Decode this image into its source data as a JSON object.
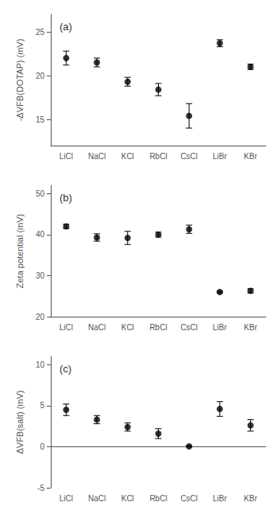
{
  "chart_data": [
    {
      "type": "scatter",
      "categories": [
        "LiCl",
        "NaCl",
        "KCl",
        "RbCl",
        "CsCl",
        "LiBr",
        "KBr"
      ],
      "values": [
        22.0,
        21.5,
        19.3,
        18.4,
        15.4,
        23.7,
        21.0
      ],
      "errors": [
        0.8,
        0.5,
        0.5,
        0.7,
        1.4,
        0.4,
        0.3
      ],
      "ylabel": "-ΔVFB(DOTAP) (mV)",
      "ylim": [
        12,
        27
      ],
      "yticks": [
        15,
        20,
        25
      ],
      "annotations": [
        "(a)"
      ],
      "color": "black",
      "marker": "circle",
      "grid": false
    },
    {
      "type": "scatter",
      "categories": [
        "LiCl",
        "NaCl",
        "KCl",
        "RbCl",
        "CsCl",
        "LiBr",
        "KBr"
      ],
      "values": [
        42.0,
        39.3,
        39.2,
        40.0,
        41.3,
        26.0,
        26.3
      ],
      "errors": [
        0.5,
        0.9,
        1.6,
        0.6,
        1.0,
        0.2,
        0.5
      ],
      "ylabel": "Zeta potential (mV)",
      "ylim": [
        20,
        52
      ],
      "yticks": [
        20,
        30,
        40,
        50
      ],
      "annotations": [
        "(b)"
      ],
      "color": "black",
      "marker": "circle",
      "grid": false
    },
    {
      "type": "scatter",
      "categories": [
        "LiCl",
        "NaCl",
        "KCl",
        "RbCl",
        "CsCl",
        "LiBr",
        "KBr"
      ],
      "values": [
        4.5,
        3.3,
        2.4,
        1.6,
        0.05,
        4.6,
        2.6
      ],
      "errors": [
        0.7,
        0.5,
        0.5,
        0.6,
        0.08,
        0.9,
        0.7
      ],
      "ylabel": "ΔVFB(salt) (mV)",
      "ylim": [
        -5,
        11
      ],
      "yticks": [
        -5,
        0,
        5,
        10
      ],
      "annotations": [
        "(c)"
      ],
      "color": "black",
      "marker": "circle",
      "grid": false
    }
  ]
}
